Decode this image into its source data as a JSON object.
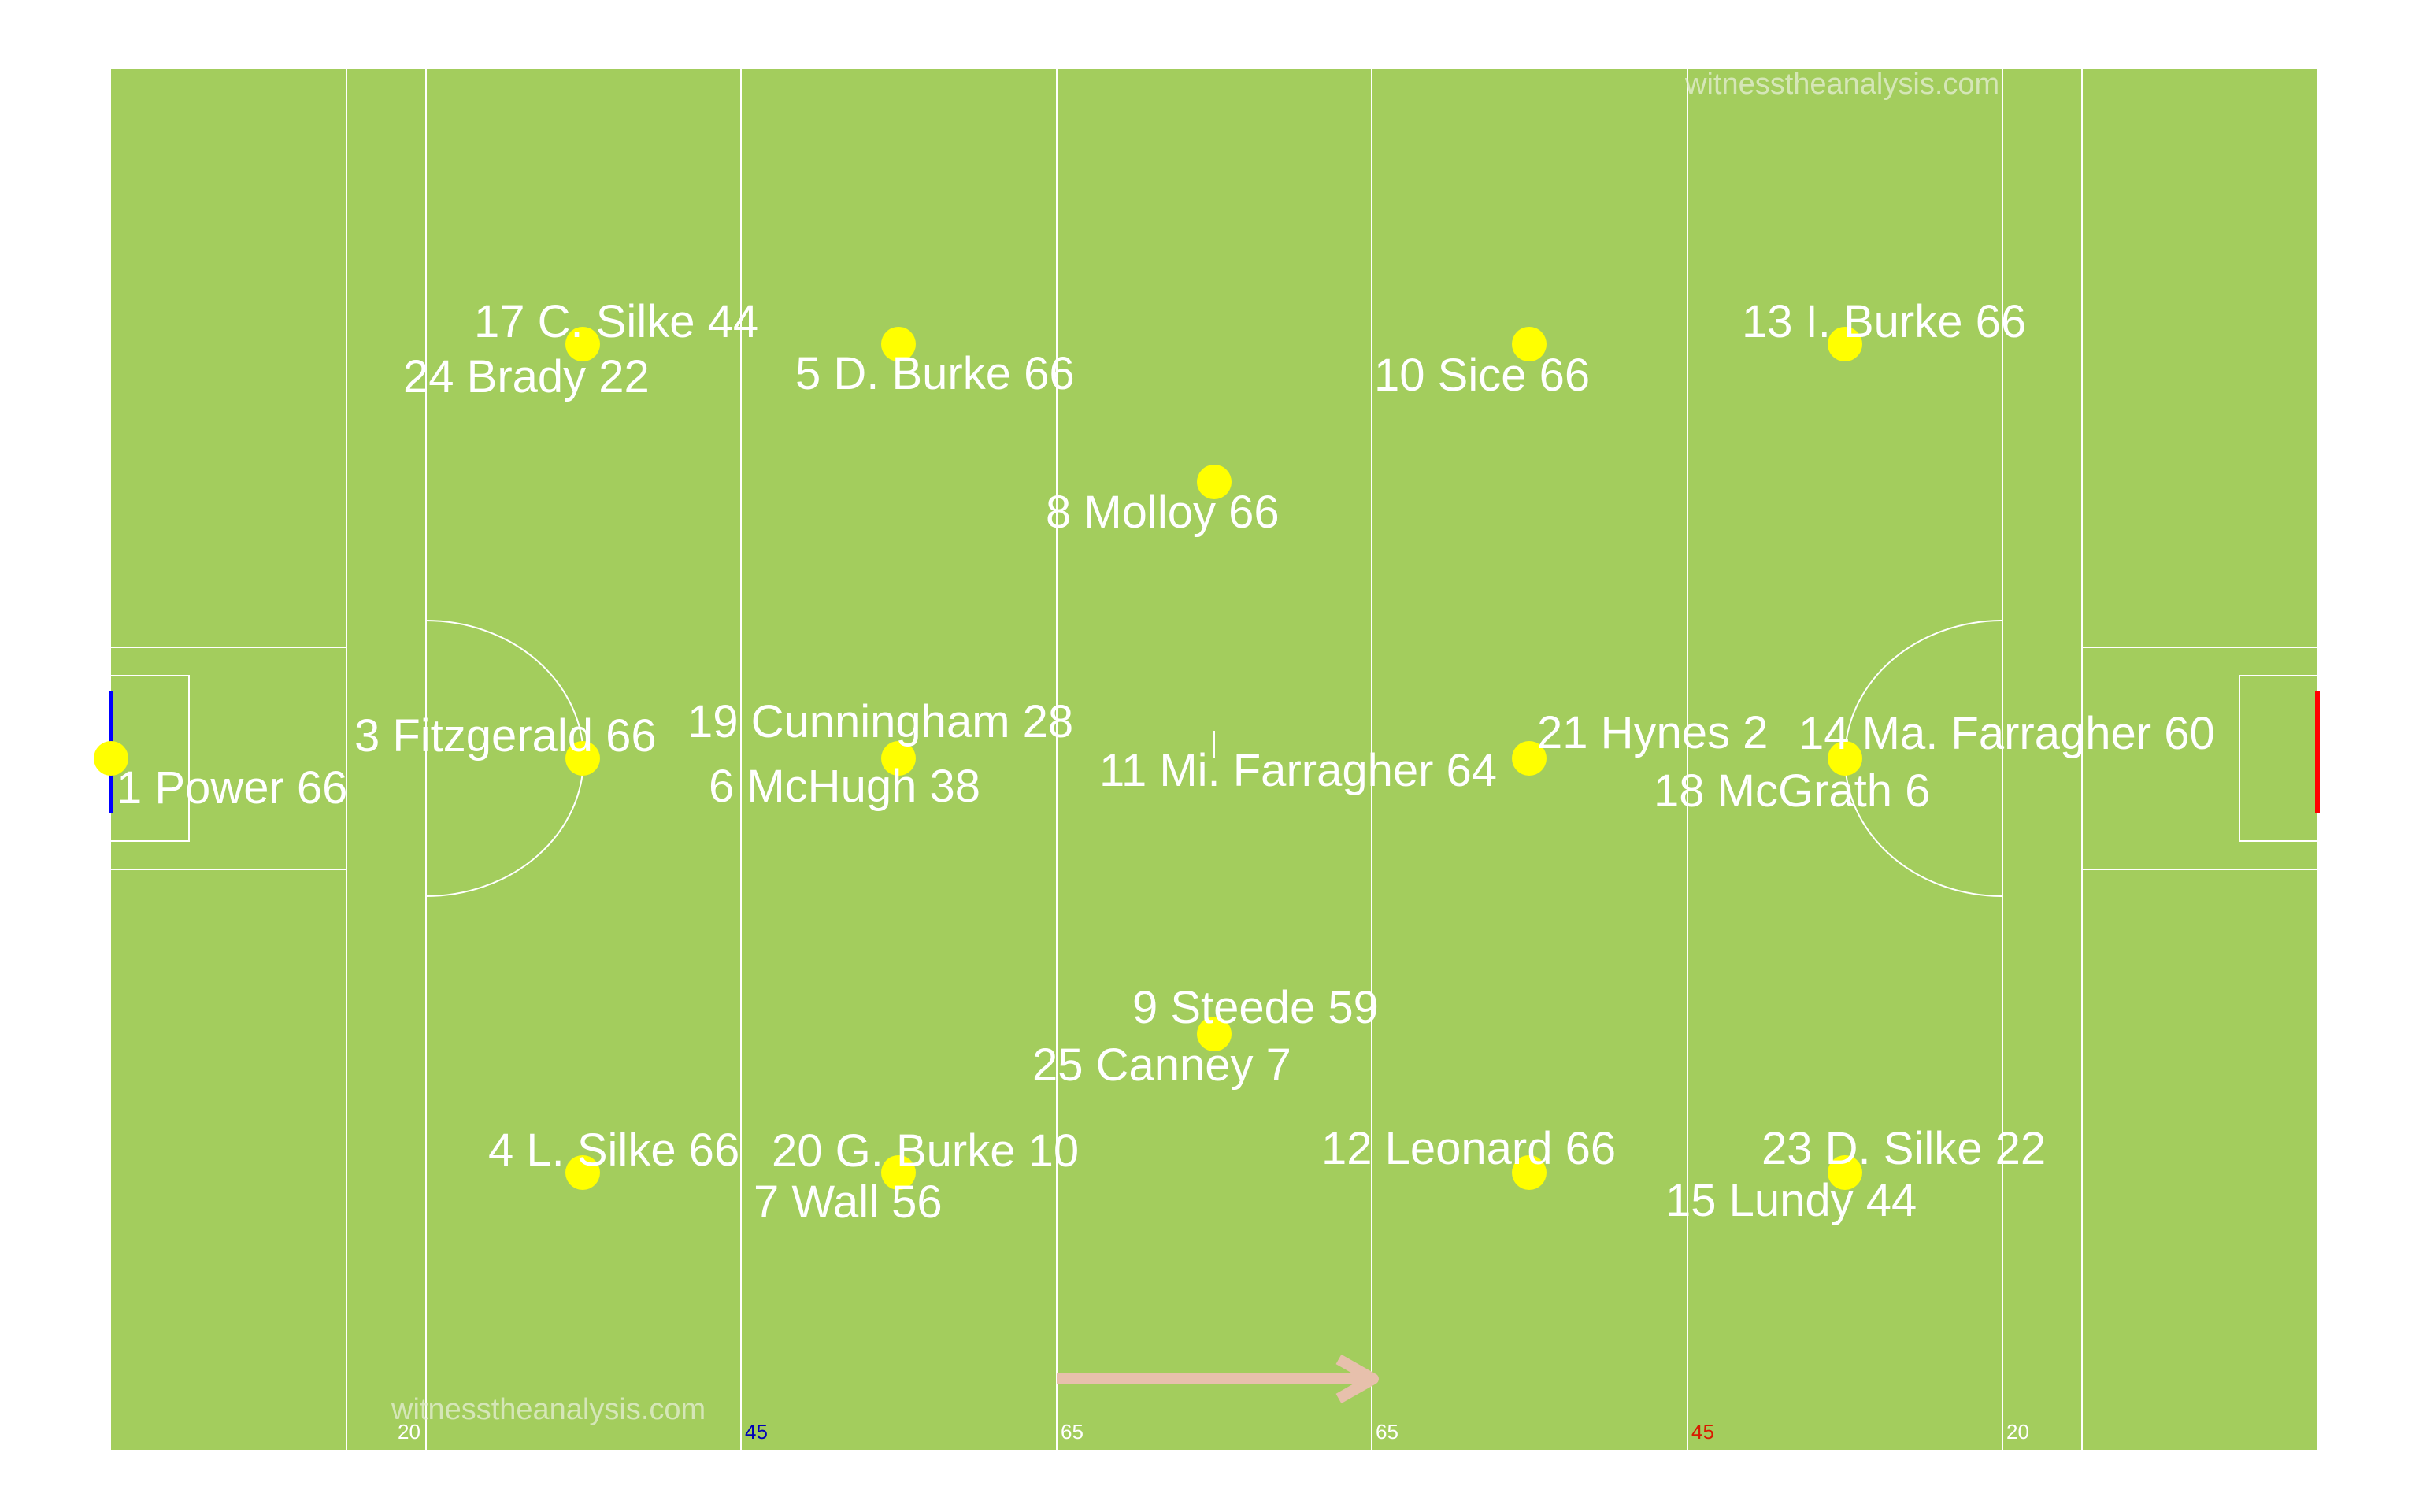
{
  "colors": {
    "pitch": "#a3cd5d",
    "lines": "#ffffff",
    "player": "#ffff00",
    "label": "#ffffff",
    "left_goal": "#0000ff",
    "right_goal": "#ff0000",
    "arrow": "#e7c0ac",
    "left_45": "#0000b8",
    "right_45": "#d81a00",
    "neutral_marker": "#ffffff"
  },
  "watermarks": [
    "witnesstheanalysis.com",
    "witnesstheanalysis.com"
  ],
  "distance_markers": [
    "20",
    "45",
    "65",
    "65",
    "45",
    "20"
  ],
  "attack_direction": "left-to-right",
  "players": [
    {
      "label": "1 Power 66"
    },
    {
      "label": "3 Fitzgerald 66"
    },
    {
      "label": "4 L. Silke 66"
    },
    {
      "label": "17 C. Silke 44"
    },
    {
      "label": "24 Brady 22"
    },
    {
      "label": "5 D. Burke 66"
    },
    {
      "label": "19 Cunningham 28"
    },
    {
      "label": "6 McHugh 38"
    },
    {
      "label": "20 G. Burke 10"
    },
    {
      "label": "7 Wall 56"
    },
    {
      "label": "8 Molloy 66"
    },
    {
      "label": "11 Mi. Farragher 64"
    },
    {
      "label": "9 Steede 59"
    },
    {
      "label": "25 Canney 7"
    },
    {
      "label": "10 Sice 66"
    },
    {
      "label": "21 Hynes 2"
    },
    {
      "label": "12 Leonard 66"
    },
    {
      "label": "13 I. Burke 66"
    },
    {
      "label": "14 Ma. Farragher 60"
    },
    {
      "label": "18 McGrath 6"
    },
    {
      "label": "23 D. Silke 22"
    },
    {
      "label": "15 Lundy 44"
    }
  ]
}
